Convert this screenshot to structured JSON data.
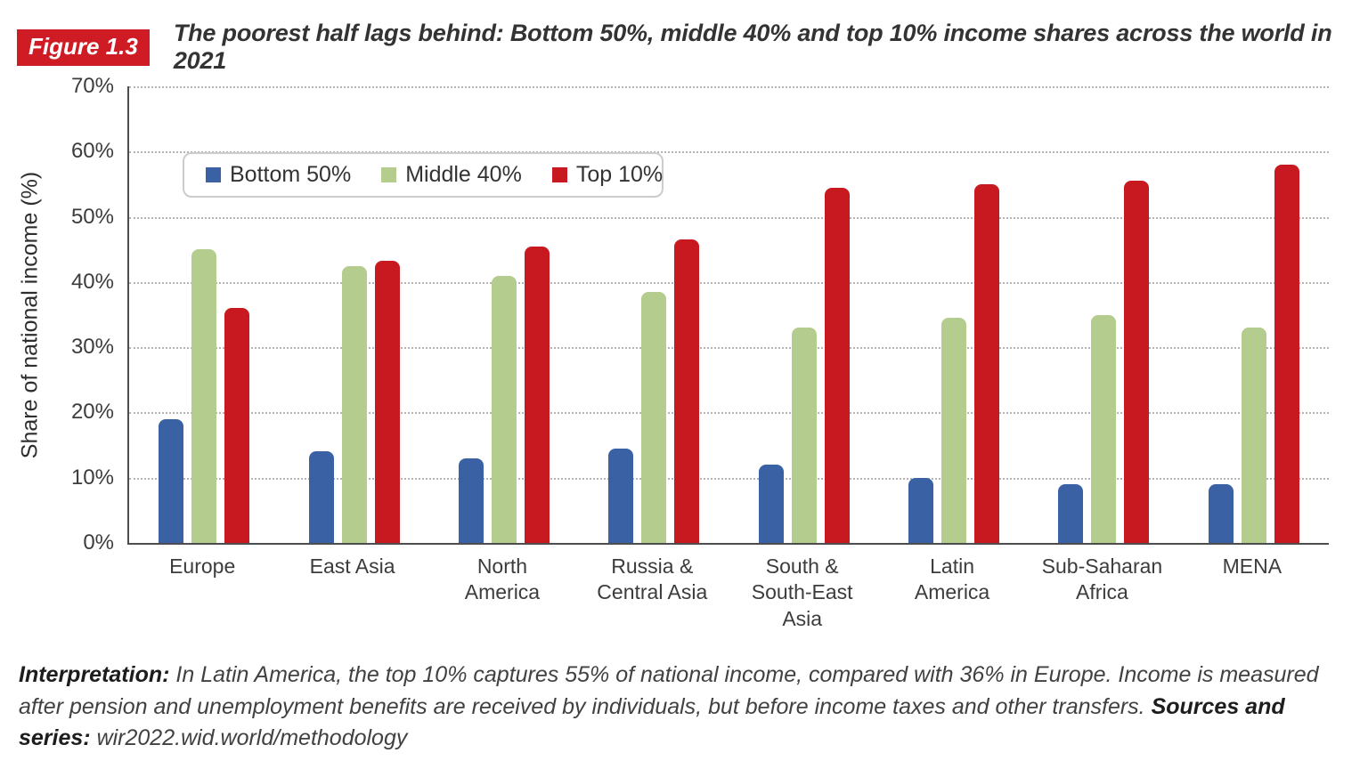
{
  "header": {
    "figure_label": "Figure 1.3",
    "label_bg": "#ce1b24",
    "title": "The poorest half lags behind: Bottom 50%, middle 40% and top 10% income shares across the world in 2021"
  },
  "chart_data": {
    "type": "bar",
    "title": "The poorest half lags behind: Bottom 50%, middle 40% and top 10% income shares across the world in 2021",
    "ylabel": "Share of national income (%)",
    "ylim": [
      0,
      70
    ],
    "ytick_step": 10,
    "ytick_suffix": "%",
    "grid": "horizontal-dotted",
    "legend_position": "top-left-inside",
    "categories": [
      "Europe",
      "East Asia",
      "North America",
      "Russia & Central Asia",
      "South & South-East Asia",
      "Latin America",
      "Sub-Saharan Africa",
      "MENA"
    ],
    "category_label_lines": [
      [
        "Europe"
      ],
      [
        "East Asia"
      ],
      [
        "North",
        "America"
      ],
      [
        "Russia &",
        "Central Asia"
      ],
      [
        "South &",
        "South-East",
        "Asia"
      ],
      [
        "Latin",
        "America"
      ],
      [
        "Sub-Saharan",
        "Africa"
      ],
      [
        "MENA"
      ]
    ],
    "series": [
      {
        "name": "Bottom 50%",
        "color": "#3a61a4",
        "values": [
          19,
          14,
          13,
          14.5,
          12,
          10,
          9,
          9
        ]
      },
      {
        "name": "Middle 40%",
        "color": "#b4cc8e",
        "values": [
          45,
          42.5,
          41,
          38.5,
          33,
          34.5,
          35,
          33
        ]
      },
      {
        "name": "Top 10%",
        "color": "#c7191f",
        "values": [
          36,
          43.3,
          45.5,
          46.5,
          54.5,
          55,
          55.5,
          58
        ]
      }
    ]
  },
  "footer": {
    "interpretation_label": "Interpretation:",
    "interpretation_text": " In Latin America, the top 10% captures 55% of national income, compared with 36% in Europe. Income is measured after pension and unemployment benefits are received by individuals, but before income taxes and other transfers. ",
    "sources_label": "Sources and series:",
    "sources_text": " wir2022.wid.world/methodology"
  }
}
